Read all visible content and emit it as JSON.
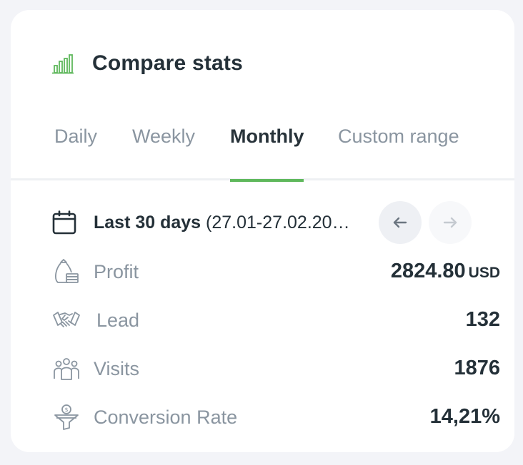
{
  "header": {
    "title": "Compare stats",
    "icon": "bar-chart-icon",
    "icon_color": "#5fb85c"
  },
  "tabs": [
    {
      "label": "Daily",
      "active": false
    },
    {
      "label": "Weekly",
      "active": false
    },
    {
      "label": "Monthly",
      "active": true
    },
    {
      "label": "Custom range",
      "active": false
    }
  ],
  "range": {
    "icon": "calendar-icon",
    "label": "Last 30 days",
    "dates": "(27.01-27.02.20…",
    "prev_icon": "arrow-left-icon",
    "next_icon": "arrow-right-icon"
  },
  "stats": [
    {
      "label": "Profit",
      "value": "2824.80",
      "unit": "USD",
      "icon": "money-bag-icon"
    },
    {
      "label": "Lead",
      "value": "132",
      "icon": "handshake-icon"
    },
    {
      "label": "Visits",
      "value": "1876",
      "icon": "people-icon"
    },
    {
      "label": "Conversion Rate",
      "value": "14,21%",
      "icon": "funnel-icon"
    }
  ],
  "colors": {
    "accent": "#5fb85c",
    "text_dark": "#243038",
    "text_muted": "#8a95a0",
    "background": "#f3f4f8"
  }
}
